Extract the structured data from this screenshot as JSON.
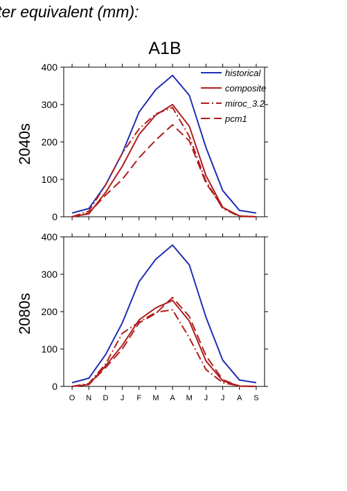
{
  "header": "ter equivalent (mm):",
  "scenario": "A1B",
  "chart_data": [
    {
      "type": "line",
      "panel": "2040s",
      "ylabel": "2040s",
      "x": [
        "O",
        "N",
        "D",
        "J",
        "F",
        "M",
        "A",
        "M",
        "J",
        "J",
        "A",
        "S"
      ],
      "ylim": [
        0,
        400
      ],
      "yticks": [
        0,
        100,
        200,
        300,
        400
      ],
      "legend_position": "top-right",
      "series": [
        {
          "name": "historical",
          "color": "#1f2db4",
          "dash": "solid",
          "values": [
            10,
            22,
            85,
            170,
            280,
            340,
            378,
            325,
            185,
            70,
            17,
            10
          ]
        },
        {
          "name": "composite",
          "color": "#b01c1c",
          "dash": "solid",
          "values": [
            0,
            8,
            65,
            135,
            220,
            272,
            300,
            242,
            110,
            25,
            2,
            0
          ]
        },
        {
          "name": "miroc_3.2",
          "color": "#b01c1c",
          "dash": "dashdot",
          "values": [
            0,
            15,
            85,
            170,
            235,
            275,
            292,
            215,
            95,
            22,
            1,
            0
          ]
        },
        {
          "name": "pcm1",
          "color": "#b01c1c",
          "dash": "dashed",
          "values": [
            0,
            10,
            58,
            100,
            158,
            205,
            246,
            203,
            90,
            25,
            2,
            0
          ]
        }
      ]
    },
    {
      "type": "line",
      "panel": "2080s",
      "ylabel": "2080s",
      "x": [
        "O",
        "N",
        "D",
        "J",
        "F",
        "M",
        "A",
        "M",
        "J",
        "J",
        "A",
        "S"
      ],
      "ylim": [
        0,
        400
      ],
      "yticks": [
        0,
        100,
        200,
        300,
        400
      ],
      "series": [
        {
          "name": "historical",
          "color": "#1f2db4",
          "dash": "solid",
          "values": [
            10,
            22,
            85,
            170,
            280,
            340,
            378,
            325,
            185,
            70,
            17,
            10
          ]
        },
        {
          "name": "composite",
          "color": "#b01c1c",
          "dash": "solid",
          "values": [
            0,
            5,
            55,
            110,
            178,
            210,
            230,
            175,
            68,
            15,
            1,
            0
          ]
        },
        {
          "name": "miroc_3.2",
          "color": "#b01c1c",
          "dash": "dashdot",
          "values": [
            0,
            8,
            60,
            142,
            172,
            198,
            205,
            130,
            45,
            10,
            1,
            0
          ]
        },
        {
          "name": "pcm1",
          "color": "#b01c1c",
          "dash": "dashed",
          "values": [
            0,
            5,
            50,
            100,
            170,
            195,
            238,
            187,
            82,
            18,
            1,
            0
          ]
        }
      ]
    }
  ]
}
